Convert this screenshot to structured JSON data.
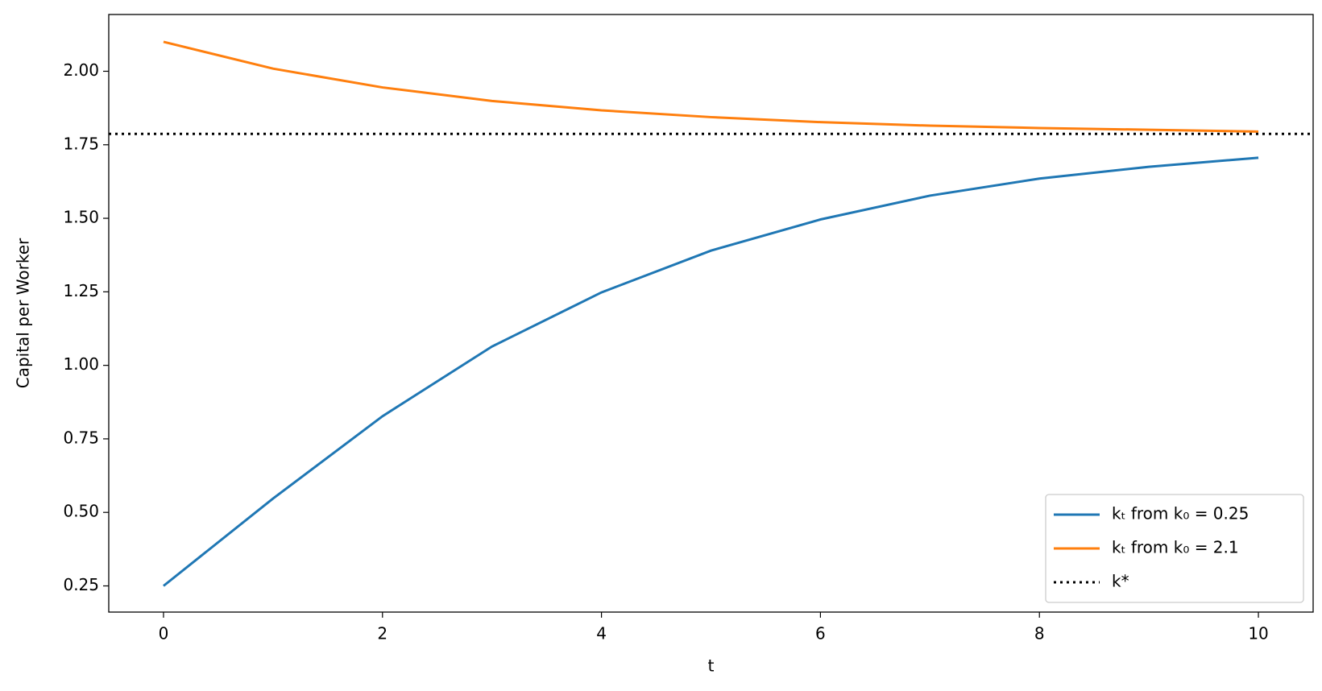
{
  "chart_data": {
    "type": "line",
    "xlabel": "t",
    "ylabel": "Capital per Worker",
    "x": [
      0,
      1,
      2,
      3,
      4,
      5,
      6,
      7,
      8,
      9,
      10
    ],
    "series": [
      {
        "name": "kₜ from k₀ = 0.25",
        "color": "#1f77b4",
        "values": [
          0.25,
          0.547,
          0.827,
          1.064,
          1.248,
          1.39,
          1.496,
          1.577,
          1.635,
          1.675,
          1.706
        ]
      },
      {
        "name": "kₜ from k₀ = 2.1",
        "color": "#ff7f0e",
        "values": [
          2.1,
          2.009,
          1.945,
          1.899,
          1.867,
          1.844,
          1.827,
          1.815,
          1.807,
          1.801,
          1.795
        ]
      }
    ],
    "reference_line": {
      "name": "k*",
      "value": 1.787,
      "color": "#000000",
      "dash": "dotted"
    },
    "xlim": [
      -0.5,
      10.5
    ],
    "ylim": [
      0.161,
      2.193
    ],
    "xticks": [
      0,
      2,
      4,
      6,
      8,
      10
    ],
    "yticks": [
      0.25,
      {
        "value": 0.5,
        "label": "0.50"
      },
      0.75,
      {
        "value": 1,
        "label": "1.00"
      },
      1.25,
      {
        "value": 1.5,
        "label": "1.50"
      },
      1.75,
      {
        "value": 2,
        "label": "2.00"
      }
    ],
    "grid": false,
    "legend": "lower right"
  }
}
